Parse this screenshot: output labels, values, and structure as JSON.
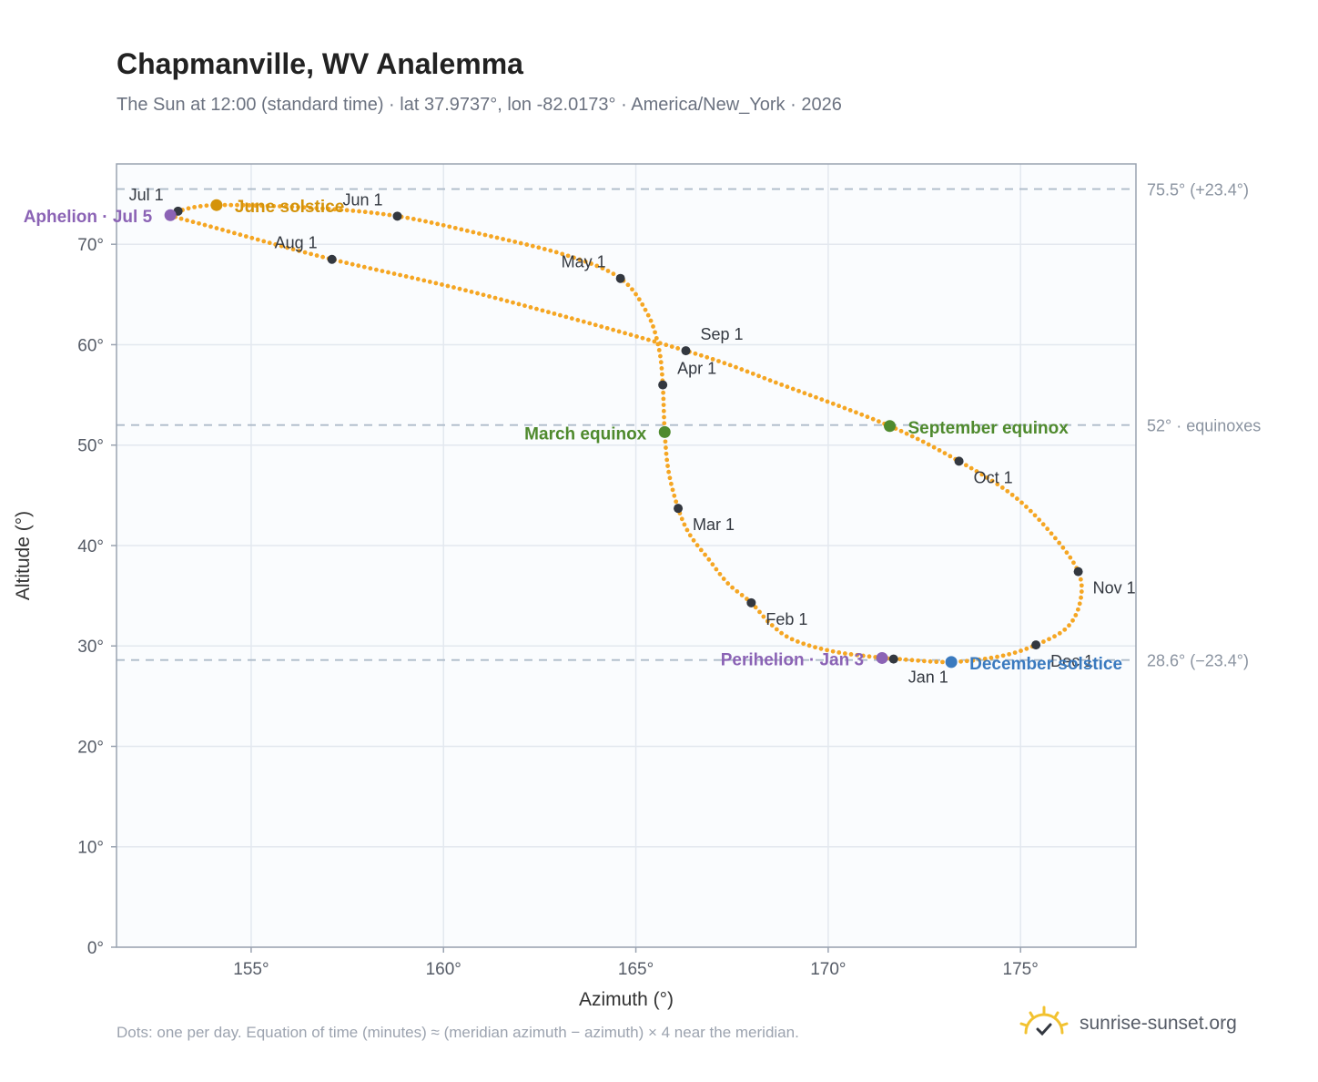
{
  "title": "Chapmanville, WV Analemma",
  "subtitle": "The Sun at 12:00 (standard time) · lat 37.9737°, lon -82.0173° · America/New_York · 2026",
  "footnote": "Dots: one per day. Equation of time (minutes) ≈ (meridian azimuth − azimuth) × 4 near the meridian.",
  "brand": {
    "name": "sunrise-sunset.org",
    "icon": "sun-logo-icon"
  },
  "colors": {
    "path": "#f5a623",
    "month": "#333840",
    "solstice_june": "#d4930a",
    "solstice_december": "#3a7abf",
    "equinox": "#4f8a2e",
    "apsis": "#8b63b5",
    "reference": "#aebbc9"
  },
  "chart_data": {
    "type": "scatter",
    "xlabel": "Azimuth (°)",
    "ylabel": "Altitude (°)",
    "xlim": [
      151.5,
      178
    ],
    "ylim": [
      0,
      78
    ],
    "xticks": [
      {
        "value": 155,
        "label": "155°"
      },
      {
        "value": 160,
        "label": "160°"
      },
      {
        "value": 165,
        "label": "165°"
      },
      {
        "value": 170,
        "label": "170°"
      },
      {
        "value": 175,
        "label": "175°"
      }
    ],
    "yticks": [
      {
        "value": 0,
        "label": "0°"
      },
      {
        "value": 10,
        "label": "10°"
      },
      {
        "value": 20,
        "label": "20°"
      },
      {
        "value": 30,
        "label": "30°"
      },
      {
        "value": 40,
        "label": "40°"
      },
      {
        "value": 50,
        "label": "50°"
      },
      {
        "value": 60,
        "label": "60°"
      },
      {
        "value": 70,
        "label": "70°"
      }
    ],
    "grid": true,
    "path_points": [
      {
        "date": "01-01",
        "az": 171.7,
        "alt": 28.7
      },
      {
        "date": "01-08",
        "az": 170.2,
        "alt": 29.4
      },
      {
        "date": "01-15",
        "az": 169.1,
        "alt": 30.6
      },
      {
        "date": "01-22",
        "az": 168.5,
        "alt": 32.2
      },
      {
        "date": "02-01",
        "az": 168.0,
        "alt": 34.3
      },
      {
        "date": "02-08",
        "az": 167.4,
        "alt": 36.2
      },
      {
        "date": "02-15",
        "az": 166.9,
        "alt": 38.6
      },
      {
        "date": "02-22",
        "az": 166.4,
        "alt": 41.1
      },
      {
        "date": "03-01",
        "az": 166.1,
        "alt": 43.7
      },
      {
        "date": "03-10",
        "az": 165.85,
        "alt": 47.4
      },
      {
        "date": "03-20",
        "az": 165.75,
        "alt": 51.3
      },
      {
        "date": "04-01",
        "az": 165.7,
        "alt": 56.0
      },
      {
        "date": "04-10",
        "az": 165.6,
        "alt": 59.6
      },
      {
        "date": "04-20",
        "az": 165.3,
        "alt": 63.1
      },
      {
        "date": "05-01",
        "az": 164.6,
        "alt": 66.6
      },
      {
        "date": "05-10",
        "az": 163.2,
        "alt": 68.9
      },
      {
        "date": "05-20",
        "az": 161.0,
        "alt": 71.0
      },
      {
        "date": "06-01",
        "az": 158.8,
        "alt": 72.8
      },
      {
        "date": "06-10",
        "az": 156.7,
        "alt": 73.6
      },
      {
        "date": "06-21",
        "az": 154.1,
        "alt": 73.9
      },
      {
        "date": "07-01",
        "az": 153.1,
        "alt": 73.3
      },
      {
        "date": "07-05",
        "az": 152.9,
        "alt": 72.9
      },
      {
        "date": "07-15",
        "az": 154.2,
        "alt": 71.5
      },
      {
        "date": "08-01",
        "az": 157.1,
        "alt": 68.5
      },
      {
        "date": "08-15",
        "az": 161.0,
        "alt": 65.0
      },
      {
        "date": "09-01",
        "az": 166.3,
        "alt": 59.4
      },
      {
        "date": "09-10",
        "az": 168.8,
        "alt": 56.0
      },
      {
        "date": "09-22",
        "az": 171.6,
        "alt": 51.9
      },
      {
        "date": "10-01",
        "az": 173.4,
        "alt": 48.4
      },
      {
        "date": "10-10",
        "az": 174.8,
        "alt": 45.0
      },
      {
        "date": "10-20",
        "az": 175.8,
        "alt": 41.2
      },
      {
        "date": "11-01",
        "az": 176.5,
        "alt": 37.4
      },
      {
        "date": "11-10",
        "az": 176.55,
        "alt": 34.4
      },
      {
        "date": "11-20",
        "az": 176.2,
        "alt": 31.8
      },
      {
        "date": "12-01",
        "az": 175.4,
        "alt": 30.1
      },
      {
        "date": "12-10",
        "az": 174.5,
        "alt": 29.0
      },
      {
        "date": "12-21",
        "az": 173.2,
        "alt": 28.4
      },
      {
        "date": "12-31",
        "az": 171.8,
        "alt": 28.7
      }
    ],
    "month_markers": [
      {
        "label": "Jan 1",
        "az": 171.7,
        "alt": 28.7,
        "anchor": "start",
        "dx": 16,
        "dy": 26
      },
      {
        "label": "Feb 1",
        "az": 168.0,
        "alt": 34.3,
        "anchor": "start",
        "dx": 16,
        "dy": 24
      },
      {
        "label": "Mar 1",
        "az": 166.1,
        "alt": 43.7,
        "anchor": "start",
        "dx": 16,
        "dy": 24
      },
      {
        "label": "Apr 1",
        "az": 165.7,
        "alt": 56.0,
        "anchor": "start",
        "dx": 16,
        "dy": -12
      },
      {
        "label": "May 1",
        "az": 164.6,
        "alt": 66.6,
        "anchor": "end",
        "dx": -16,
        "dy": -12
      },
      {
        "label": "Jun 1",
        "az": 158.8,
        "alt": 72.8,
        "anchor": "end",
        "dx": -16,
        "dy": -12
      },
      {
        "label": "Jul 1",
        "az": 153.1,
        "alt": 73.3,
        "anchor": "end",
        "dx": -16,
        "dy": -12
      },
      {
        "label": "Aug 1",
        "az": 157.1,
        "alt": 68.5,
        "anchor": "end",
        "dx": -16,
        "dy": -12
      },
      {
        "label": "Sep 1",
        "az": 166.3,
        "alt": 59.4,
        "anchor": "start",
        "dx": 16,
        "dy": -12
      },
      {
        "label": "Oct 1",
        "az": 173.4,
        "alt": 48.4,
        "anchor": "start",
        "dx": 16,
        "dy": 24
      },
      {
        "label": "Nov 1",
        "az": 176.5,
        "alt": 37.4,
        "anchor": "start",
        "dx": 16,
        "dy": 24
      },
      {
        "label": "Dec 1",
        "az": 175.4,
        "alt": 30.1,
        "anchor": "start",
        "dx": 16,
        "dy": 24
      }
    ],
    "events": [
      {
        "label": "June solstice",
        "az": 154.1,
        "alt": 73.9,
        "kind": "solstice_june",
        "anchor": "start",
        "dx": 20,
        "dy": 8
      },
      {
        "label": "Aphelion · Jul 5",
        "az": 152.9,
        "alt": 72.9,
        "kind": "apsis",
        "anchor": "end",
        "dx": -20,
        "dy": 8
      },
      {
        "label": "March equinox",
        "az": 165.75,
        "alt": 51.3,
        "kind": "equinox",
        "anchor": "end",
        "dx": -20,
        "dy": 8
      },
      {
        "label": "September equinox",
        "az": 171.6,
        "alt": 51.9,
        "kind": "equinox",
        "anchor": "start",
        "dx": 20,
        "dy": 8
      },
      {
        "label": "Perihelion · Jan 3",
        "az": 171.4,
        "alt": 28.8,
        "kind": "apsis",
        "anchor": "end",
        "dx": -20,
        "dy": 8
      },
      {
        "label": "December solstice",
        "az": 173.2,
        "alt": 28.4,
        "kind": "solstice_december",
        "anchor": "start",
        "dx": 20,
        "dy": 8
      }
    ],
    "reference_lines": [
      {
        "alt": 75.5,
        "label": "75.5° (+23.4°)"
      },
      {
        "alt": 52,
        "label": "52° · equinoxes"
      },
      {
        "alt": 28.6,
        "label": "28.6° (−23.4°)"
      }
    ]
  }
}
